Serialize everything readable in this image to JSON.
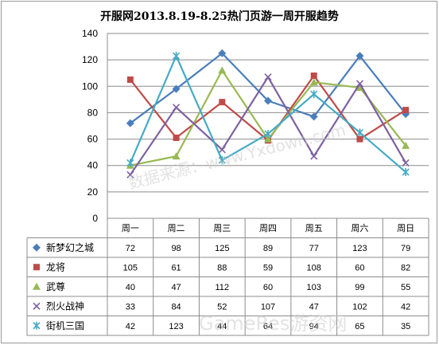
{
  "watermarks": {
    "center": "数据来源：www.Yxdown.com",
    "corner": "GameRes游资网"
  },
  "chart_data": {
    "type": "line",
    "title": "开服网2013.8.19-8.25热门页游一周开服趋势",
    "categories": [
      "周一",
      "周二",
      "周三",
      "周四",
      "周五",
      "周六",
      "周日"
    ],
    "ylim": [
      0,
      140
    ],
    "yticks": [
      0,
      20,
      40,
      60,
      80,
      100,
      120,
      140
    ],
    "grid": true,
    "legend": "data-table-below",
    "series": [
      {
        "name": "新梦幻之城",
        "color": "#4a7ebb",
        "marker": "diamond",
        "values": [
          72,
          98,
          125,
          89,
          77,
          123,
          79
        ]
      },
      {
        "name": "龙将",
        "color": "#be4b48",
        "marker": "square",
        "values": [
          105,
          61,
          88,
          59,
          108,
          60,
          82
        ]
      },
      {
        "name": "武尊",
        "color": "#98b954",
        "marker": "triangle",
        "values": [
          40,
          47,
          112,
          60,
          103,
          99,
          55
        ]
      },
      {
        "name": "烈火战神",
        "color": "#7d60a0",
        "marker": "x",
        "values": [
          33,
          84,
          52,
          107,
          47,
          102,
          42
        ]
      },
      {
        "name": "街机三国",
        "color": "#46aac5",
        "marker": "star",
        "values": [
          42,
          123,
          44,
          64,
          94,
          65,
          35
        ]
      }
    ]
  }
}
